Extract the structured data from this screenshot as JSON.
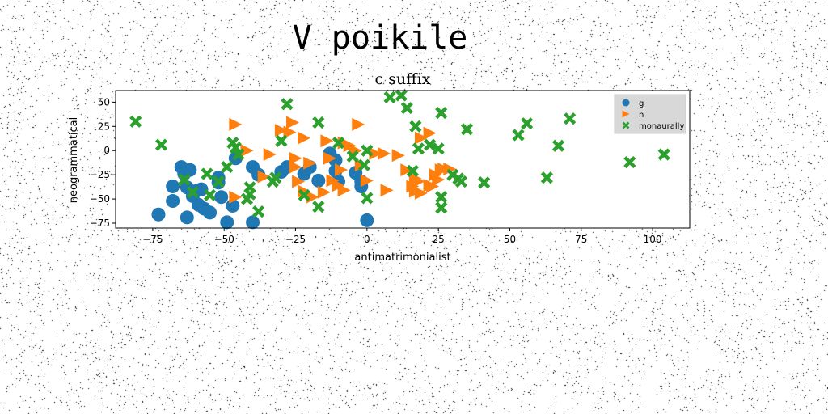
{
  "suptitle": "V poikile",
  "chart_data": {
    "type": "scatter",
    "title": "c suffix",
    "xlabel": "antimatrimonialist",
    "ylabel": "neogrammatical",
    "xlim": [
      -88,
      113
    ],
    "ylim": [
      -80,
      62
    ],
    "xticks": [
      -75,
      -50,
      -25,
      0,
      25,
      50,
      75,
      100
    ],
    "yticks": [
      -75,
      -50,
      -25,
      0,
      25,
      50
    ],
    "grid": false,
    "legend": "top-right",
    "series": [
      {
        "name": "g",
        "color": "#1f77b4",
        "marker": "circle",
        "points": [
          [
            -65,
            -17
          ],
          [
            -62,
            -20
          ],
          [
            -64,
            -24
          ],
          [
            -68,
            -37
          ],
          [
            -63,
            -38
          ],
          [
            -60,
            -42
          ],
          [
            -58,
            -40
          ],
          [
            -61,
            -47
          ],
          [
            -68,
            -52
          ],
          [
            -59,
            -56
          ],
          [
            -57,
            -60
          ],
          [
            -55,
            -64
          ],
          [
            -63,
            -69
          ],
          [
            -73,
            -66
          ],
          [
            -49,
            -74
          ],
          [
            -40,
            -74
          ],
          [
            -52,
            -33
          ],
          [
            -52,
            -28
          ],
          [
            -51,
            -48
          ],
          [
            -47,
            -57
          ],
          [
            -46,
            -8
          ],
          [
            -40,
            -17
          ],
          [
            -38,
            -25
          ],
          [
            -30,
            -22
          ],
          [
            -28,
            -17
          ],
          [
            -22,
            -24
          ],
          [
            -20,
            -17
          ],
          [
            -17,
            -31
          ],
          [
            -13,
            -3
          ],
          [
            -11,
            -10
          ],
          [
            -11,
            -21
          ],
          [
            -10,
            -32
          ],
          [
            -4,
            -23
          ],
          [
            -2,
            -32
          ],
          [
            -2,
            -37
          ],
          [
            0,
            -72
          ]
        ]
      },
      {
        "name": "n",
        "color": "#ff7f0e",
        "marker": "triangle-right",
        "points": [
          [
            -46,
            27
          ],
          [
            -46,
            -48
          ],
          [
            -42,
            0
          ],
          [
            -36,
            -27
          ],
          [
            -34,
            -4
          ],
          [
            -30,
            21
          ],
          [
            -27,
            19
          ],
          [
            -26,
            29
          ],
          [
            -25,
            -8
          ],
          [
            -25,
            -17
          ],
          [
            -24,
            -32
          ],
          [
            -22,
            13
          ],
          [
            -22,
            -42
          ],
          [
            -20,
            -13
          ],
          [
            -19,
            -48
          ],
          [
            -13,
            -8
          ],
          [
            -15,
            -43
          ],
          [
            -14,
            10
          ],
          [
            -12,
            -31
          ],
          [
            -10,
            -36
          ],
          [
            -9,
            -20
          ],
          [
            -8,
            -41
          ],
          [
            -8,
            8
          ],
          [
            -6,
            5
          ],
          [
            -4,
            0
          ],
          [
            -3,
            27
          ],
          [
            -2,
            -15
          ],
          [
            0,
            -31
          ],
          [
            3,
            -3
          ],
          [
            6,
            -3
          ],
          [
            7,
            -41
          ],
          [
            11,
            -5
          ],
          [
            14,
            -20
          ],
          [
            16,
            -37
          ],
          [
            17,
            -29
          ],
          [
            17,
            -42
          ],
          [
            18,
            -32
          ],
          [
            19,
            -44
          ],
          [
            19,
            13
          ],
          [
            22,
            18
          ],
          [
            22,
            -36
          ],
          [
            23,
            -37
          ],
          [
            24,
            -25
          ],
          [
            25,
            -30
          ],
          [
            26,
            -20
          ],
          [
            27,
            -19
          ],
          [
            29,
            -19
          ]
        ]
      },
      {
        "name": "monaurally",
        "color": "#2ca02c",
        "marker": "x",
        "points": [
          [
            -81,
            30
          ],
          [
            -72,
            6
          ],
          [
            -64,
            -30
          ],
          [
            -61,
            -43
          ],
          [
            -56,
            -24
          ],
          [
            -55,
            -46
          ],
          [
            -52,
            -32
          ],
          [
            -49,
            -17
          ],
          [
            -47,
            8
          ],
          [
            -46,
            3
          ],
          [
            -45,
            -4
          ],
          [
            -42,
            -50
          ],
          [
            -41,
            -38
          ],
          [
            -41,
            -45
          ],
          [
            -38,
            -63
          ],
          [
            -33,
            -32
          ],
          [
            -32,
            -28
          ],
          [
            -30,
            10
          ],
          [
            -28,
            48
          ],
          [
            -22,
            -46
          ],
          [
            -17,
            -58
          ],
          [
            -17,
            29
          ],
          [
            -10,
            8
          ],
          [
            -5,
            -6
          ],
          [
            -1,
            -15
          ],
          [
            0,
            -49
          ],
          [
            0,
            0
          ],
          [
            8,
            55
          ],
          [
            12,
            57
          ],
          [
            14,
            44
          ],
          [
            16,
            -21
          ],
          [
            17,
            25
          ],
          [
            18,
            2
          ],
          [
            22,
            6
          ],
          [
            25,
            2
          ],
          [
            26,
            -48
          ],
          [
            26,
            -59
          ],
          [
            26,
            39
          ],
          [
            30,
            -25
          ],
          [
            32,
            -29
          ],
          [
            33,
            -32
          ],
          [
            35,
            22
          ],
          [
            41,
            -33
          ],
          [
            53,
            16
          ],
          [
            56,
            28
          ],
          [
            63,
            -28
          ],
          [
            67,
            5
          ],
          [
            71,
            33
          ],
          [
            92,
            -12
          ],
          [
            104,
            -4
          ]
        ]
      }
    ]
  }
}
